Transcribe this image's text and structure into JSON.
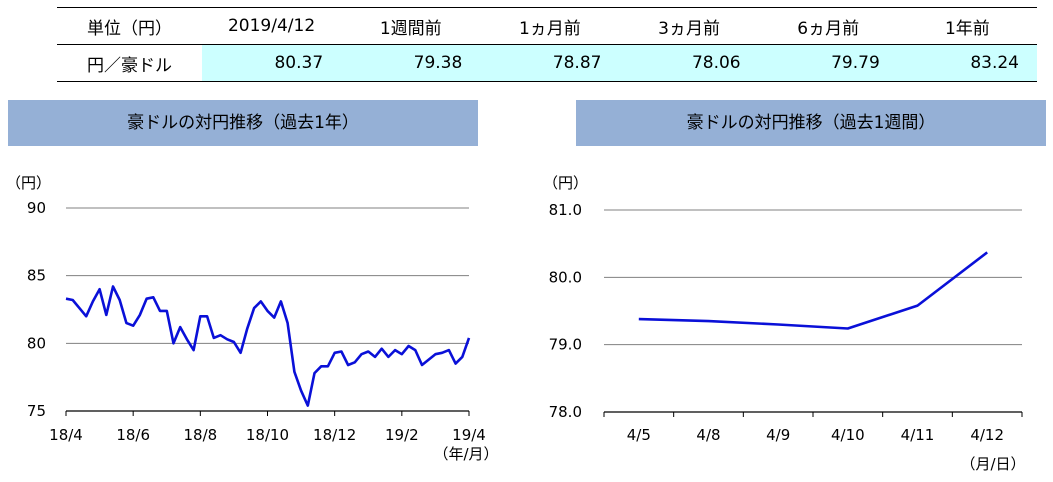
{
  "table": {
    "header": [
      "単位（円）",
      "2019/4/12",
      "1週間前",
      "1ヵ月前",
      "3ヵ月前",
      "6ヵ月前",
      "1年前"
    ],
    "row_label": "円／豪ドル",
    "values": [
      "80.37",
      "79.38",
      "78.87",
      "78.06",
      "79.79",
      "83.24"
    ]
  },
  "colors": {
    "table_highlight": "#ccffff",
    "title_bg": "#95b0d6",
    "line": "#0a10d8",
    "grid": "#808080"
  },
  "chart_data": [
    {
      "type": "line",
      "title": "豪ドルの対円推移（過去1年）",
      "ylabel": "（円）",
      "xlabel": "（年/月）",
      "ylim": [
        75,
        90
      ],
      "yticks": [
        "90",
        "85",
        "80",
        "75"
      ],
      "xticks": [
        "18/4",
        "18/6",
        "18/8",
        "18/10",
        "18/12",
        "19/2",
        "19/4"
      ],
      "grid": true,
      "series": [
        {
          "x": [
            0,
            0.2,
            0.4,
            0.6,
            0.8,
            1.0,
            1.2,
            1.4,
            1.6,
            1.8,
            2.0,
            2.2,
            2.4,
            2.6,
            2.8,
            3.0,
            3.2,
            3.4,
            3.6,
            3.8,
            4.0,
            4.2,
            4.4,
            4.6,
            4.8,
            5.0,
            5.2,
            5.4,
            5.6,
            5.8,
            6.0,
            6.2,
            6.4,
            6.6,
            6.8,
            7.0,
            7.2,
            7.4,
            7.6,
            7.8,
            8.0,
            8.2,
            8.4,
            8.6,
            8.8,
            9.0,
            9.2,
            9.4,
            9.6,
            9.8,
            10.0,
            10.2,
            10.4,
            10.6,
            10.8,
            11.0,
            11.2,
            11.4,
            11.6,
            11.8,
            12.0
          ],
          "values": [
            83.3,
            83.2,
            82.6,
            82.0,
            83.1,
            84.0,
            82.1,
            84.2,
            83.2,
            81.5,
            81.3,
            82.1,
            83.3,
            83.4,
            82.4,
            82.4,
            80.0,
            81.2,
            80.3,
            79.5,
            82.0,
            82.0,
            80.4,
            80.6,
            80.3,
            80.1,
            79.3,
            81.1,
            82.6,
            83.1,
            82.4,
            81.9,
            83.1,
            81.5,
            77.9,
            76.5,
            75.4,
            77.8,
            78.3,
            78.3,
            79.3,
            79.4,
            78.4,
            78.6,
            79.2,
            79.4,
            79.0,
            79.6,
            79.0,
            79.5,
            79.2,
            79.8,
            79.5,
            78.4,
            78.8,
            79.2,
            79.3,
            79.5,
            78.5,
            79.0,
            80.4
          ]
        }
      ]
    },
    {
      "type": "line",
      "title": "豪ドルの対円推移（過去1週間）",
      "ylabel": "（円）",
      "xlabel": "（月/日）",
      "ylim": [
        78.0,
        81.0
      ],
      "yticks": [
        "81.0",
        "80.0",
        "79.0",
        "78.0"
      ],
      "categories": [
        "4/5",
        "4/8",
        "4/9",
        "4/10",
        "4/11",
        "4/12"
      ],
      "grid": true,
      "series": [
        {
          "values": [
            79.38,
            79.35,
            79.3,
            79.24,
            79.58,
            80.37
          ]
        }
      ]
    }
  ]
}
